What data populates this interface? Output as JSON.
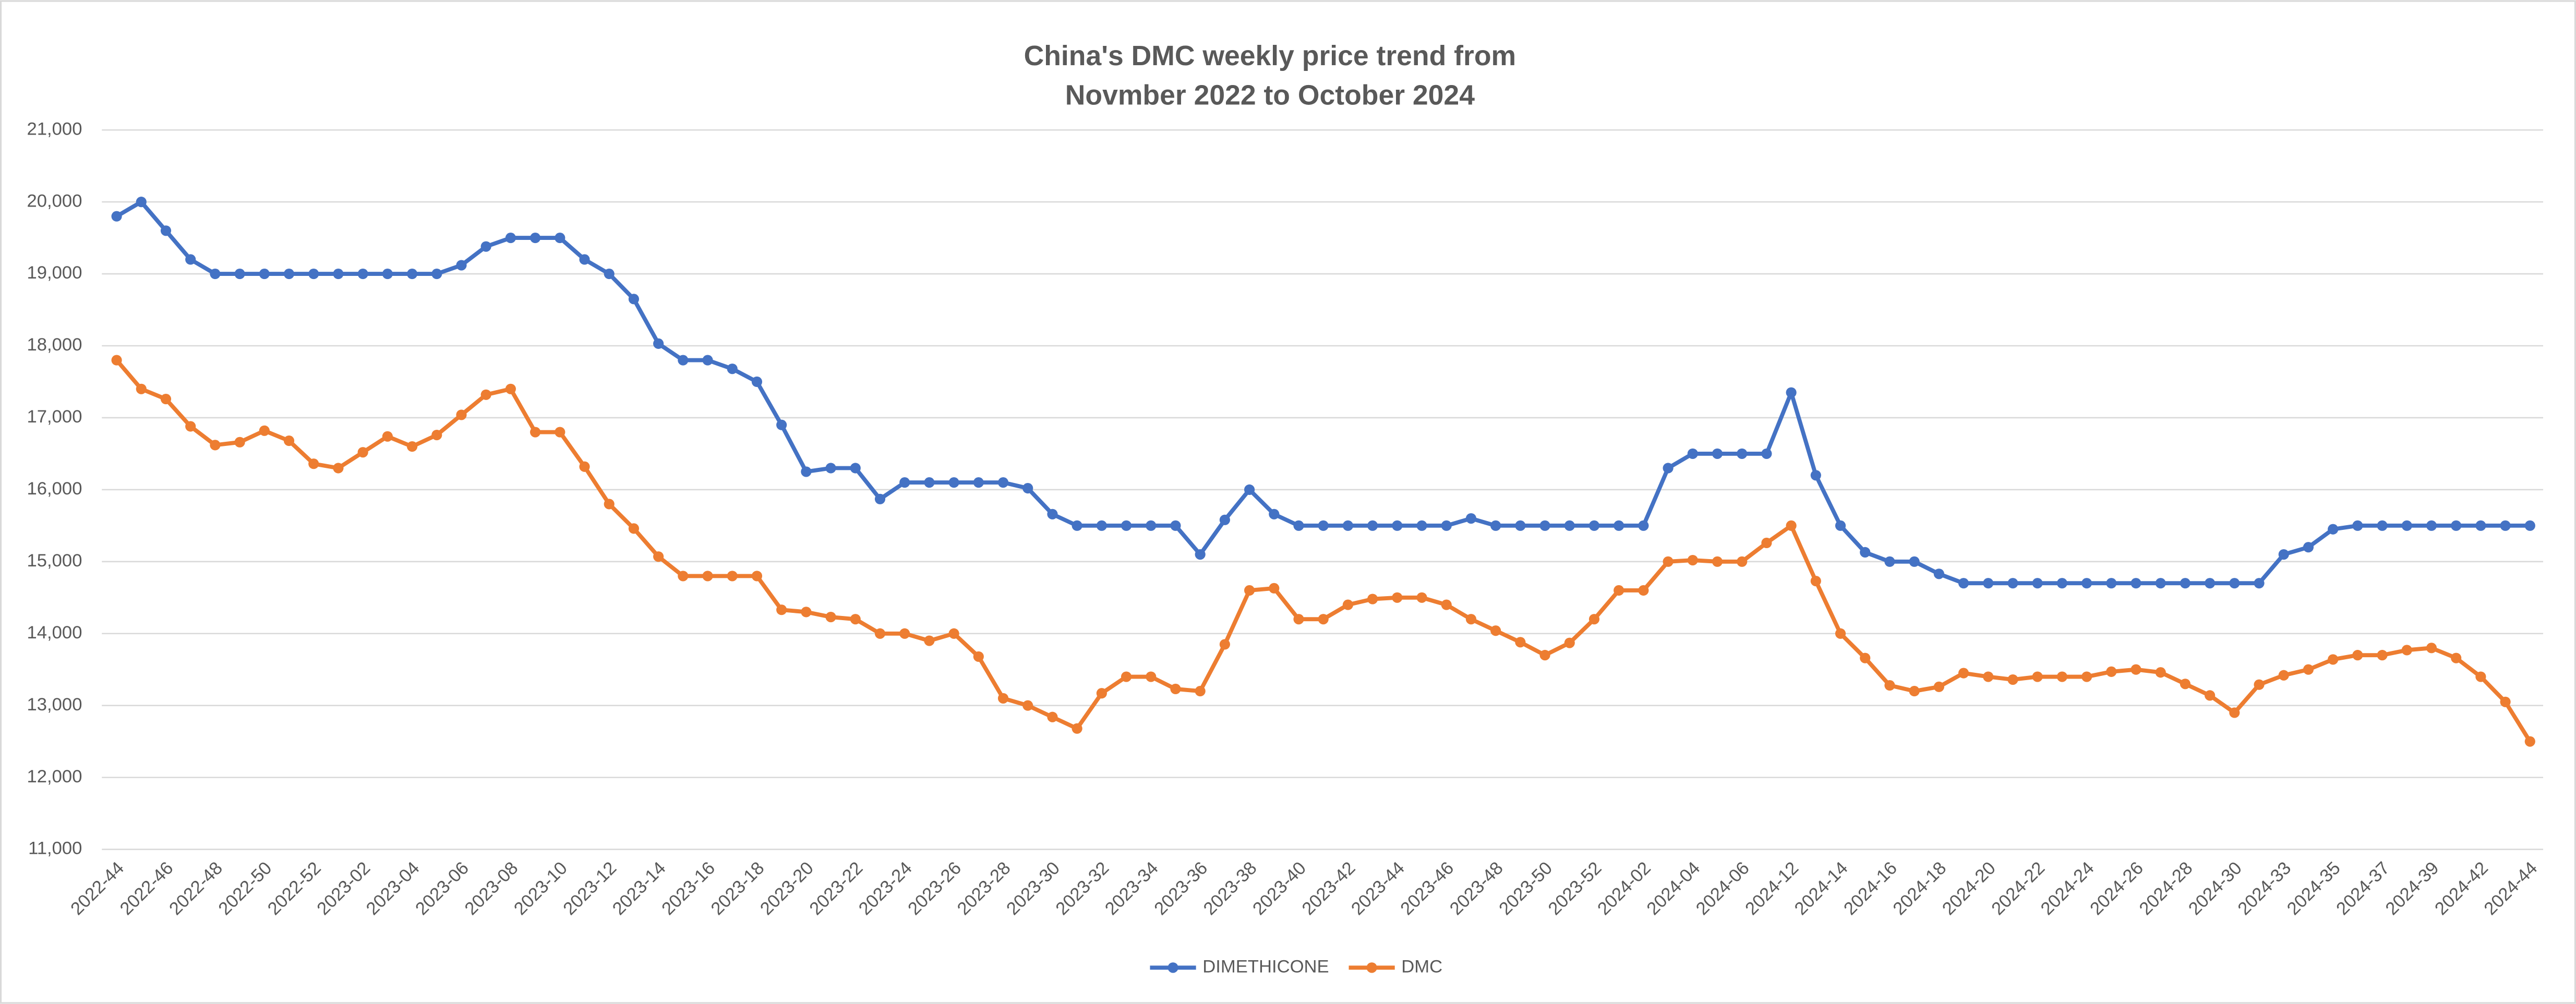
{
  "chart_data": {
    "type": "line",
    "title": [
      "China's DMC weekly price trend from",
      "Novmber 2022 to October 2024"
    ],
    "categories": [
      "2022-44",
      null,
      "2022-46",
      null,
      "2022-48",
      null,
      "2022-50",
      null,
      "2022-52",
      null,
      "2023-02",
      null,
      "2023-04",
      null,
      "2023-06",
      null,
      "2023-08",
      null,
      "2023-10",
      null,
      "2023-12",
      null,
      "2023-14",
      null,
      "2023-16",
      null,
      "2023-18",
      null,
      "2023-20",
      null,
      "2023-22",
      null,
      "2023-24",
      null,
      "2023-26",
      null,
      "2023-28",
      null,
      "2023-30",
      null,
      "2023-32",
      null,
      "2023-34",
      null,
      "2023-36",
      null,
      "2023-38",
      null,
      "2023-40",
      null,
      "2023-42",
      null,
      "2023-44",
      null,
      "2023-46",
      null,
      "2023-48",
      null,
      "2023-50",
      null,
      "2023-52",
      null,
      "2024-02",
      null,
      "2024-04",
      null,
      "2024-06",
      null,
      "2024-12",
      null,
      "2024-14",
      null,
      "2024-16",
      null,
      "2024-18",
      null,
      "2024-20",
      null,
      "2024-22",
      null,
      "2024-24",
      null,
      "2024-26",
      null,
      "2024-28",
      null,
      "2024-30",
      null,
      "2024-33",
      null,
      "2024-35",
      null,
      "2024-37",
      null,
      "2024-39",
      null,
      "2024-42",
      null,
      "2024-44"
    ],
    "series": [
      {
        "name": "DIMETHICONE",
        "color": "#4472c4",
        "values": [
          19800,
          20000,
          19600,
          19200,
          19000,
          19000,
          19000,
          19000,
          19000,
          19000,
          19000,
          19000,
          19000,
          19000,
          19120,
          19380,
          19500,
          19500,
          19500,
          19200,
          19000,
          18650,
          18030,
          17800,
          17800,
          17680,
          17500,
          16900,
          16250,
          16300,
          16300,
          15870,
          16100,
          16100,
          16100,
          16100,
          16100,
          16020,
          15660,
          15500,
          15500,
          15500,
          15500,
          15500,
          15100,
          15580,
          16000,
          15660,
          15500,
          15500,
          15500,
          15500,
          15500,
          15500,
          15500,
          15600,
          15500,
          15500,
          15500,
          15500,
          15500,
          15500,
          15500,
          16300,
          16500,
          16500,
          16500,
          16500,
          17350,
          16200,
          15500,
          15130,
          15000,
          15000,
          14830,
          14700,
          14700,
          14700,
          14700,
          14700,
          14700,
          14700,
          14700,
          14700,
          14700,
          14700,
          14700,
          14700,
          15100,
          15200,
          15450,
          15500,
          15500,
          15500,
          15500,
          15500,
          15500,
          15500,
          15500
        ]
      },
      {
        "name": "DMC",
        "color": "#ed7d31",
        "values": [
          17800,
          17400,
          17260,
          16880,
          16620,
          16660,
          16820,
          16680,
          16360,
          16300,
          16520,
          16740,
          16600,
          16760,
          17040,
          17320,
          17400,
          16800,
          16800,
          16320,
          15800,
          15460,
          15070,
          14800,
          14800,
          14800,
          14800,
          14330,
          14300,
          14230,
          14200,
          14000,
          14000,
          13900,
          14000,
          13680,
          13100,
          13000,
          12840,
          12680,
          13170,
          13400,
          13400,
          13230,
          13200,
          13850,
          14600,
          14630,
          14200,
          14200,
          14400,
          14480,
          14500,
          14500,
          14400,
          14200,
          14040,
          13880,
          13700,
          13870,
          14200,
          14600,
          14600,
          15000,
          15020,
          15000,
          15000,
          15260,
          15500,
          14730,
          14000,
          13660,
          13280,
          13200,
          13260,
          13450,
          13400,
          13360,
          13400,
          13400,
          13400,
          13470,
          13500,
          13460,
          13300,
          13140,
          12900,
          13290,
          13420,
          13500,
          13640,
          13700,
          13700,
          13770,
          13800,
          13660,
          13400,
          13050,
          12500
        ]
      }
    ],
    "ylim": [
      11000,
      21000
    ],
    "yticks": [
      {
        "value": 11000,
        "label": "11,000"
      },
      {
        "value": 12000,
        "label": "12,000"
      },
      {
        "value": 13000,
        "label": "13,000"
      },
      {
        "value": 14000,
        "label": "14,000"
      },
      {
        "value": 15000,
        "label": "15,000"
      },
      {
        "value": 16000,
        "label": "16,000"
      },
      {
        "value": 17000,
        "label": "17,000"
      },
      {
        "value": 18000,
        "label": "18,000"
      },
      {
        "value": 19000,
        "label": "19,000"
      },
      {
        "value": 20000,
        "label": "20,000"
      },
      {
        "value": 21000,
        "label": "21,000"
      }
    ],
    "grid": true,
    "legend": "bottom"
  }
}
